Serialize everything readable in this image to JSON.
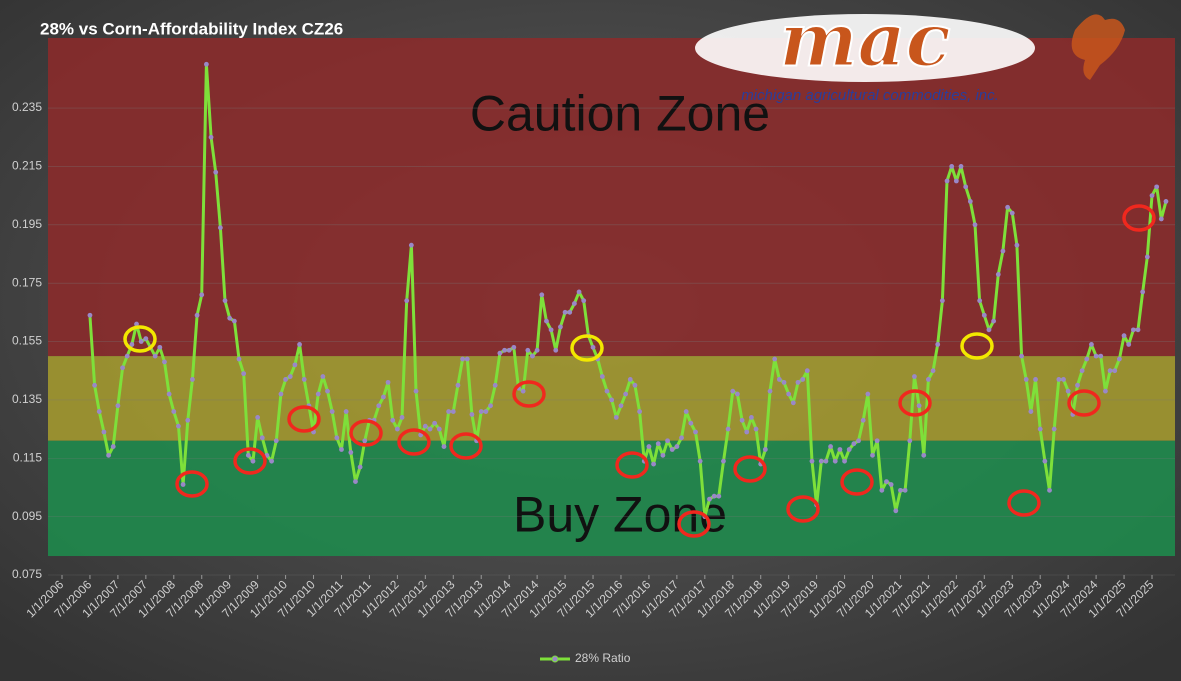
{
  "chart_data": {
    "type": "line",
    "title": "28% vs Corn-Affordability Index CZ26",
    "x": [
      "7/1/2006",
      "8/1/2006",
      "9/1/2006",
      "10/1/2006",
      "11/1/2006",
      "12/1/2006",
      "1/1/2007",
      "2/1/2007",
      "3/1/2007",
      "4/1/2007",
      "5/1/2007",
      "6/1/2007",
      "7/1/2007",
      "8/1/2007",
      "9/1/2007",
      "10/1/2007",
      "11/1/2007",
      "12/1/2007",
      "1/1/2008",
      "2/1/2008",
      "3/1/2008",
      "4/1/2008",
      "5/1/2008",
      "6/1/2008",
      "7/1/2008",
      "8/1/2008",
      "9/1/2008",
      "10/1/2008",
      "11/1/2008",
      "12/1/2008",
      "1/1/2009",
      "2/1/2009",
      "3/1/2009",
      "4/1/2009",
      "5/1/2009",
      "6/1/2009",
      "7/1/2009",
      "8/1/2009",
      "9/1/2009",
      "10/1/2009",
      "11/1/2009",
      "12/1/2009",
      "1/1/2010",
      "2/1/2010",
      "3/1/2010",
      "4/1/2010",
      "5/1/2010",
      "6/1/2010",
      "7/1/2010",
      "8/1/2010",
      "9/1/2010",
      "10/1/2010",
      "11/1/2010",
      "12/1/2010",
      "1/1/2011",
      "2/1/2011",
      "3/1/2011",
      "4/1/2011",
      "5/1/2011",
      "6/1/2011",
      "7/1/2011",
      "8/1/2011",
      "9/1/2011",
      "10/1/2011",
      "11/1/2011",
      "12/1/2011",
      "1/1/2012",
      "2/1/2012",
      "3/1/2012",
      "4/1/2012",
      "5/1/2012",
      "6/1/2012",
      "7/1/2012",
      "8/1/2012",
      "9/1/2012",
      "10/1/2012",
      "11/1/2012",
      "12/1/2012",
      "1/1/2013",
      "2/1/2013",
      "3/1/2013",
      "4/1/2013",
      "5/1/2013",
      "6/1/2013",
      "7/1/2013",
      "8/1/2013",
      "9/1/2013",
      "10/1/2013",
      "11/1/2013",
      "12/1/2013",
      "1/1/2014",
      "2/1/2014",
      "3/1/2014",
      "4/1/2014",
      "5/1/2014",
      "6/1/2014",
      "7/1/2014",
      "8/1/2014",
      "9/1/2014",
      "10/1/2014",
      "11/1/2014",
      "12/1/2014",
      "1/1/2015",
      "2/1/2015",
      "3/1/2015",
      "4/1/2015",
      "5/1/2015",
      "6/1/2015",
      "7/1/2015",
      "8/1/2015",
      "9/1/2015",
      "10/1/2015",
      "11/1/2015",
      "12/1/2015",
      "1/1/2016",
      "2/1/2016",
      "3/1/2016",
      "4/1/2016",
      "5/1/2016",
      "6/1/2016",
      "7/1/2016",
      "8/1/2016",
      "9/1/2016",
      "10/1/2016",
      "11/1/2016",
      "12/1/2016",
      "1/1/2017",
      "2/1/2017",
      "3/1/2017",
      "4/1/2017",
      "5/1/2017",
      "6/1/2017",
      "7/1/2017",
      "8/1/2017",
      "9/1/2017",
      "10/1/2017",
      "11/1/2017",
      "12/1/2017",
      "1/1/2018",
      "2/1/2018",
      "3/1/2018",
      "4/1/2018",
      "5/1/2018",
      "6/1/2018",
      "7/1/2018",
      "8/1/2018",
      "9/1/2018",
      "10/1/2018",
      "11/1/2018",
      "12/1/2018",
      "1/1/2019",
      "2/1/2019",
      "3/1/2019",
      "4/1/2019",
      "5/1/2019",
      "6/1/2019",
      "7/1/2019",
      "8/1/2019",
      "9/1/2019",
      "10/1/2019",
      "11/1/2019",
      "12/1/2019",
      "1/1/2020",
      "2/1/2020",
      "3/1/2020",
      "4/1/2020",
      "5/1/2020",
      "6/1/2020",
      "7/1/2020",
      "8/1/2020",
      "9/1/2020",
      "10/1/2020",
      "11/1/2020",
      "12/1/2020",
      "1/1/2021",
      "2/1/2021",
      "3/1/2021",
      "4/1/2021",
      "5/1/2021",
      "6/1/2021",
      "7/1/2021",
      "8/1/2021",
      "9/1/2021",
      "10/1/2021",
      "11/1/2021",
      "12/1/2021",
      "1/1/2022",
      "2/1/2022",
      "3/1/2022",
      "4/1/2022",
      "5/1/2022",
      "6/1/2022",
      "7/1/2022",
      "8/1/2022",
      "9/1/2022",
      "10/1/2022",
      "11/1/2022",
      "12/1/2022",
      "1/1/2023",
      "2/1/2023",
      "3/1/2023",
      "4/1/2023",
      "5/1/2023",
      "6/1/2023",
      "7/1/2023",
      "8/1/2023",
      "9/1/2023",
      "10/1/2023",
      "11/1/2023",
      "12/1/2023",
      "1/1/2024",
      "2/1/2024",
      "3/1/2024",
      "4/1/2024",
      "5/1/2024",
      "6/1/2024",
      "7/1/2024",
      "8/1/2024",
      "9/1/2024",
      "10/1/2024",
      "11/1/2024",
      "12/1/2024",
      "1/1/2025",
      "2/1/2025",
      "3/1/2025",
      "4/1/2025",
      "5/1/2025",
      "6/1/2025",
      "7/1/2025",
      "8/1/2025",
      "9/1/2025",
      "10/1/2025"
    ],
    "series": [
      {
        "name": "28% Ratio",
        "color": "#7ee03a",
        "marker_color": "#9a88c8",
        "values": [
          0.164,
          0.14,
          0.131,
          0.124,
          0.116,
          0.119,
          0.133,
          0.146,
          0.15,
          0.154,
          0.161,
          0.155,
          0.156,
          0.153,
          0.15,
          0.153,
          0.148,
          0.137,
          0.131,
          0.126,
          0.106,
          0.128,
          0.142,
          0.164,
          0.171,
          0.25,
          0.225,
          0.213,
          0.194,
          0.169,
          0.163,
          0.162,
          0.149,
          0.144,
          0.116,
          0.114,
          0.129,
          0.122,
          0.116,
          0.114,
          0.121,
          0.137,
          0.142,
          0.143,
          0.147,
          0.154,
          0.142,
          0.133,
          0.124,
          0.137,
          0.143,
          0.138,
          0.131,
          0.122,
          0.118,
          0.131,
          0.117,
          0.107,
          0.112,
          0.121,
          0.128,
          0.128,
          0.133,
          0.136,
          0.141,
          0.128,
          0.125,
          0.129,
          0.169,
          0.188,
          0.138,
          0.123,
          0.126,
          0.125,
          0.127,
          0.125,
          0.119,
          0.131,
          0.131,
          0.14,
          0.149,
          0.149,
          0.13,
          0.121,
          0.131,
          0.131,
          0.133,
          0.14,
          0.151,
          0.152,
          0.152,
          0.153,
          0.139,
          0.138,
          0.152,
          0.15,
          0.152,
          0.171,
          0.162,
          0.159,
          0.152,
          0.16,
          0.165,
          0.165,
          0.168,
          0.172,
          0.169,
          0.157,
          0.153,
          0.149,
          0.143,
          0.138,
          0.135,
          0.129,
          0.133,
          0.137,
          0.142,
          0.14,
          0.131,
          0.114,
          0.119,
          0.113,
          0.12,
          0.116,
          0.121,
          0.118,
          0.119,
          0.122,
          0.131,
          0.127,
          0.124,
          0.114,
          0.095,
          0.101,
          0.102,
          0.102,
          0.114,
          0.125,
          0.138,
          0.137,
          0.128,
          0.124,
          0.129,
          0.125,
          0.113,
          0.118,
          0.138,
          0.149,
          0.142,
          0.141,
          0.137,
          0.134,
          0.141,
          0.142,
          0.145,
          0.114,
          0.099,
          0.114,
          0.114,
          0.119,
          0.114,
          0.118,
          0.114,
          0.118,
          0.12,
          0.121,
          0.128,
          0.137,
          0.116,
          0.121,
          0.104,
          0.107,
          0.106,
          0.097,
          0.104,
          0.104,
          0.121,
          0.143,
          0.133,
          0.116,
          0.142,
          0.145,
          0.154,
          0.169,
          0.21,
          0.215,
          0.21,
          0.215,
          0.208,
          0.203,
          0.195,
          0.169,
          0.164,
          0.159,
          0.162,
          0.178,
          0.186,
          0.201,
          0.199,
          0.188,
          0.15,
          0.142,
          0.131,
          0.142,
          0.125,
          0.114,
          0.104,
          0.125,
          0.142,
          0.142,
          0.138,
          0.13,
          0.14,
          0.145,
          0.149,
          0.154,
          0.15,
          0.15,
          0.138,
          0.145,
          0.145,
          0.149,
          0.157,
          0.154,
          0.159,
          0.159,
          0.172,
          0.184,
          0.205,
          0.208,
          0.197,
          0.203
        ]
      }
    ],
    "ylim": [
      0.075,
      0.259
    ],
    "yticks": [
      0.075,
      0.095,
      0.115,
      0.135,
      0.155,
      0.175,
      0.195,
      0.215,
      0.235
    ],
    "xticks": [
      "1/1/2006",
      "7/1/2006",
      "1/1/2007",
      "7/1/2007",
      "1/1/2008",
      "7/1/2008",
      "1/1/2009",
      "7/1/2009",
      "1/1/2010",
      "7/1/2010",
      "1/1/2011",
      "7/1/2011",
      "1/1/2012",
      "7/1/2012",
      "1/1/2013",
      "7/1/2013",
      "1/1/2014",
      "7/1/2014",
      "1/1/2015",
      "7/1/2015",
      "1/1/2016",
      "7/1/2016",
      "1/1/2017",
      "7/1/2017",
      "1/1/2018",
      "7/1/2018",
      "1/1/2019",
      "7/1/2019",
      "1/1/2020",
      "7/1/2020",
      "1/1/2021",
      "7/1/2021",
      "1/1/2022",
      "7/1/2022",
      "1/1/2023",
      "7/1/2023",
      "1/1/2024",
      "7/1/2024",
      "1/1/2025",
      "7/1/2025"
    ],
    "grid": true,
    "legend": "bottom",
    "zones": [
      {
        "label": "Caution Zone",
        "color": "#8a2b2b",
        "range": [
          0.15,
          0.259
        ]
      },
      {
        "color": "#a2982f",
        "range": [
          0.121,
          0.15
        ]
      },
      {
        "label": "Buy Zone",
        "color": "#1f8a4c",
        "range": [
          0.0815,
          0.121
        ]
      }
    ]
  },
  "logo": {
    "text": "mac",
    "tagline": "michigan agricultural commodities, inc."
  }
}
